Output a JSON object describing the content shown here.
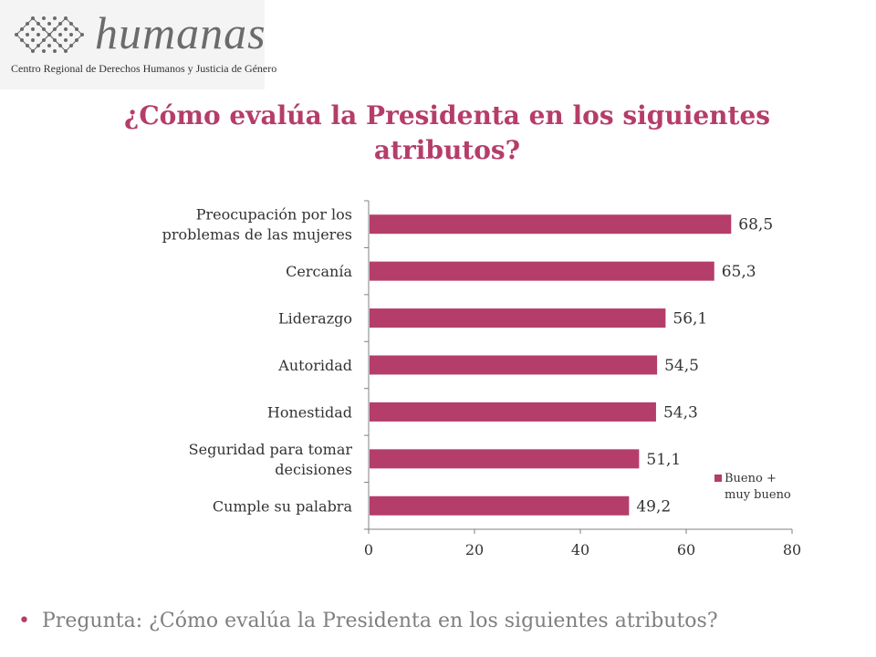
{
  "logo": {
    "word": "humanas",
    "subtitle": "Centro Regional de Derechos Humanos y Justicia de Género"
  },
  "title": "¿Cómo evalúa la Presidenta en los siguientes atributos?",
  "colors": {
    "bar": "#b53d6a",
    "title": "#b53d6a",
    "axis": "#808080",
    "text": "#333333",
    "bullet_text": "#7f7f7f"
  },
  "chart_data": {
    "type": "bar",
    "orientation": "horizontal",
    "categories": [
      "Preocupación por los problemas de las mujeres",
      "Cercanía",
      "Liderazgo",
      "Autoridad",
      "Honestidad",
      "Seguridad para tomar decisiones",
      "Cumple su palabra"
    ],
    "category_lines": [
      [
        "Preocupación por los",
        "problemas de las mujeres"
      ],
      [
        "Cercanía"
      ],
      [
        "Liderazgo"
      ],
      [
        "Autoridad"
      ],
      [
        "Honestidad"
      ],
      [
        "Seguridad para tomar",
        "decisiones"
      ],
      [
        "Cumple su palabra"
      ]
    ],
    "series": [
      {
        "name": "Bueno + muy bueno",
        "legend_lines": [
          "Bueno +",
          "muy bueno"
        ],
        "values": [
          68.5,
          65.3,
          56.1,
          54.5,
          54.3,
          51.1,
          49.2
        ],
        "labels": [
          "68,5",
          "65,3",
          "56,1",
          "54,5",
          "54,3",
          "51,1",
          "49,2"
        ]
      }
    ],
    "xlim": [
      0,
      80
    ],
    "xticks": [
      "0",
      "20",
      "40",
      "60",
      "80"
    ],
    "grid": false,
    "legend_position": "bottom-right"
  },
  "bullet": {
    "text": "Pregunta: ¿Cómo evalúa la Presidenta en los siguientes atributos?"
  }
}
